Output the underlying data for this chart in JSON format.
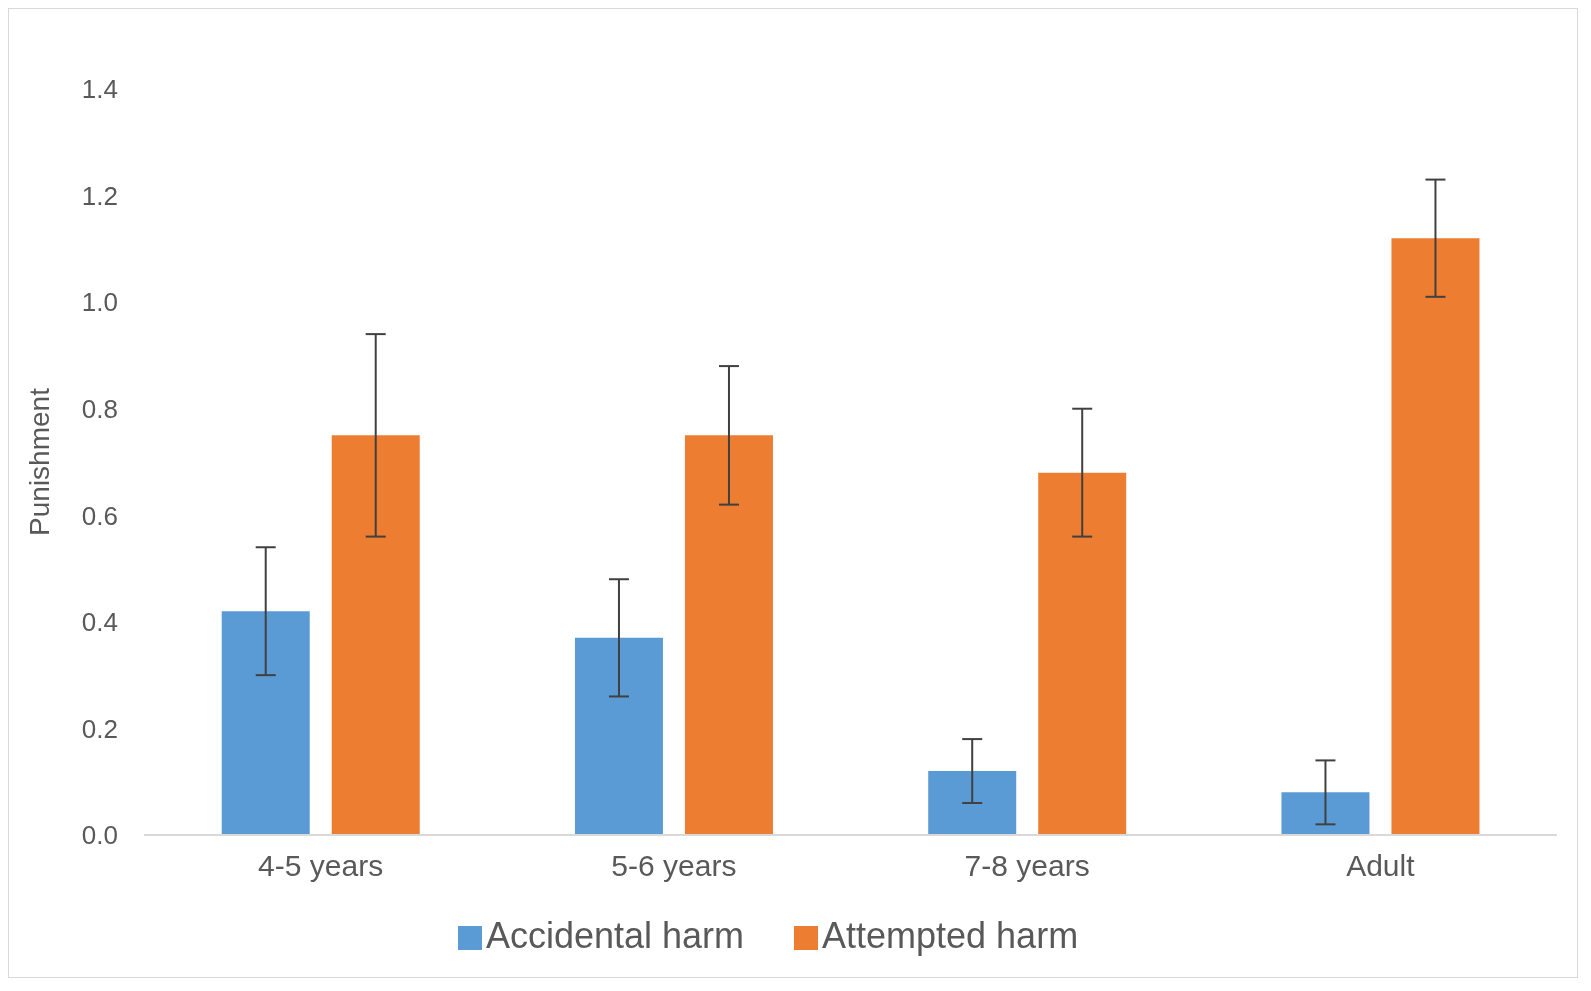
{
  "chart_data": {
    "type": "bar",
    "ylabel": "Punishment",
    "categories": [
      "4-5 years",
      "5-6 years",
      "7-8 years",
      "Adult"
    ],
    "series": [
      {
        "name": "Accidental harm",
        "color": "#5b9bd5",
        "values": [
          0.42,
          0.37,
          0.12,
          0.08
        ],
        "errors": [
          0.12,
          0.11,
          0.06,
          0.06
        ]
      },
      {
        "name": "Attempted harm",
        "color": "#ed7d31",
        "values": [
          0.75,
          0.75,
          0.68,
          1.12
        ],
        "errors": [
          0.19,
          0.13,
          0.12,
          0.11
        ]
      }
    ],
    "ylim": [
      0,
      1.4
    ],
    "yticks": [
      {
        "value": 0,
        "label": "0.0"
      },
      {
        "value": 0.2,
        "label": "0.2"
      },
      {
        "value": 0.4,
        "label": "0.4"
      },
      {
        "value": 0.6,
        "label": "0.6"
      },
      {
        "value": 0.8,
        "label": "0.8"
      },
      {
        "value": 1.0,
        "label": "1.0"
      },
      {
        "value": 1.2,
        "label": "1.2"
      },
      {
        "value": 1.4,
        "label": "1.4"
      }
    ],
    "legend": "bottom"
  }
}
